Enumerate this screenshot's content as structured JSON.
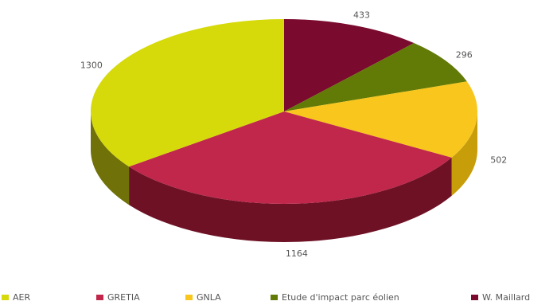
{
  "chart_data": {
    "type": "pie",
    "title": "",
    "three_d": true,
    "legend_position": "bottom",
    "series": [
      {
        "name": "W. Maillard",
        "value": 433,
        "label": "433",
        "color": "#7a0a2e",
        "side": "#4c0520"
      },
      {
        "name": "Etude d'impact parc éolien",
        "value": 296,
        "label": "296",
        "color": "#627a06",
        "side": "#3c4a04"
      },
      {
        "name": "GNLA",
        "value": 502,
        "label": "502",
        "color": "#f8c61c",
        "side": "#c79d0a"
      },
      {
        "name": "GRETIA",
        "value": 1164,
        "label": "1164",
        "color": "#c0274b",
        "side": "#6e1125"
      },
      {
        "name": "AER",
        "value": 1300,
        "label": "1300",
        "color": "#d6d90a",
        "side": "#707108"
      }
    ],
    "legend_order": [
      "AER",
      "GRETIA",
      "GNLA",
      "Etude d'impact parc éolien",
      "W. Maillard"
    ]
  }
}
